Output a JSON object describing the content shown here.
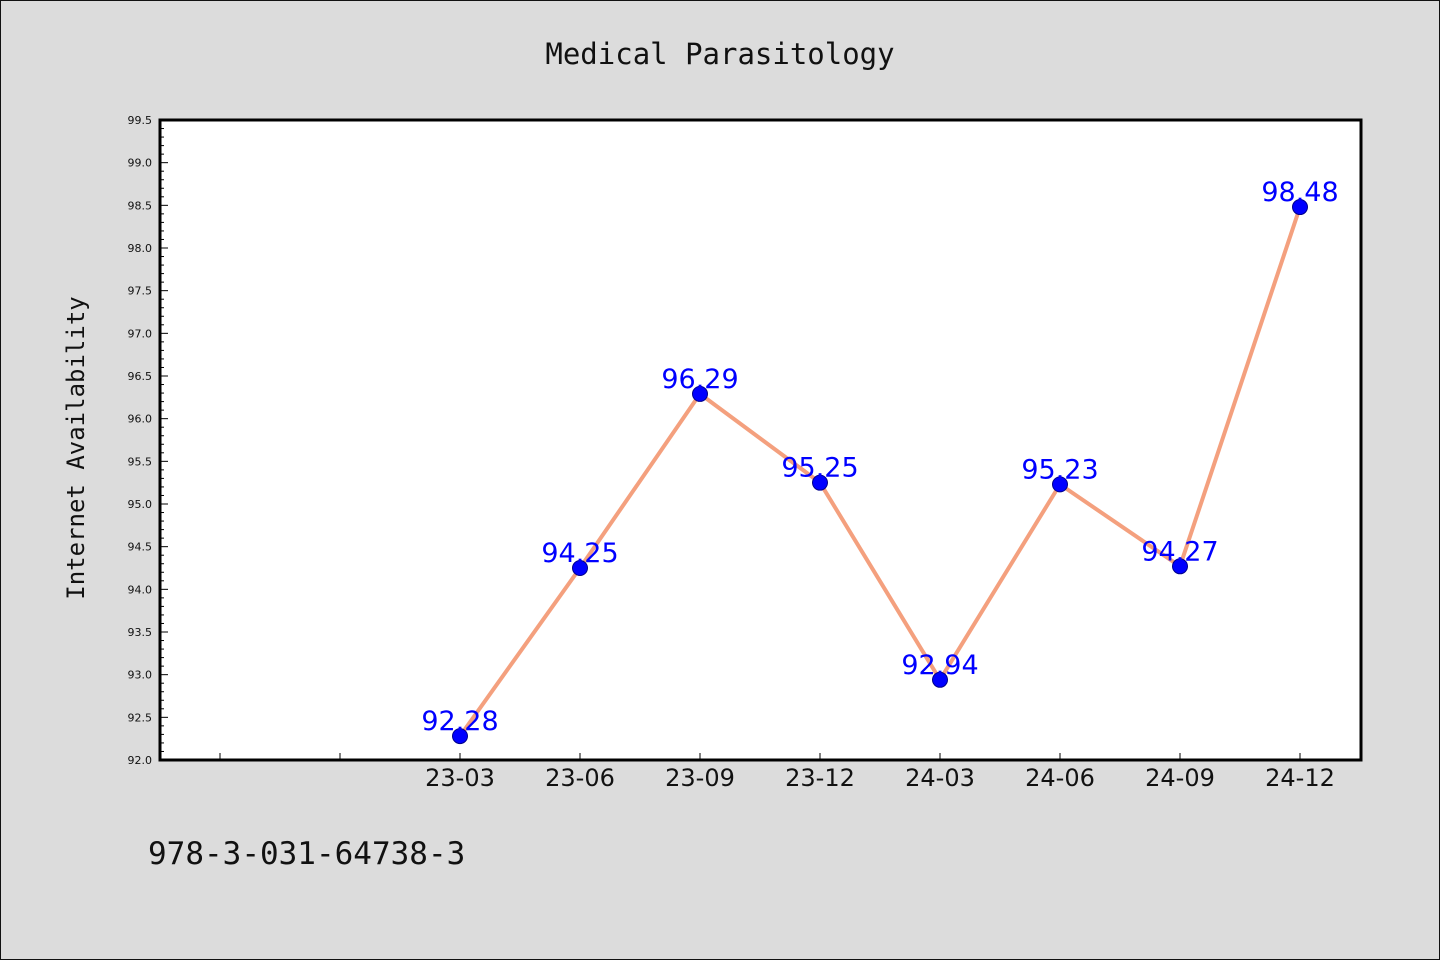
{
  "chart_data": {
    "type": "line",
    "title": "Medical Parasitology",
    "ylabel": "Internet Availability",
    "xlabel": "",
    "categories": [
      "",
      "",
      "23-03",
      "23-06",
      "23-09",
      "23-12",
      "24-03",
      "24-06",
      "24-09",
      "24-12"
    ],
    "series": [
      {
        "values": [
          null,
          null,
          92.28,
          94.25,
          96.29,
          95.25,
          92.94,
          95.23,
          94.27,
          98.48
        ]
      }
    ],
    "data_labels": [
      "",
      "",
      "92.28",
      "94.25",
      "96.29",
      "95.25",
      "92.94",
      "95.23",
      "94.27",
      "98.48"
    ],
    "ylim": [
      92.0,
      99.5
    ],
    "yticks": [
      "92.0",
      "92.5",
      "93.0",
      "93.5",
      "94.0",
      "94.5",
      "95.0",
      "95.5",
      "96.0",
      "96.5",
      "97.0",
      "97.5",
      "98.0",
      "98.5",
      "99.0",
      "99.5"
    ],
    "grid": false,
    "line_color": "#f4a07e",
    "marker_color": "#0000ff",
    "label_color": "#0000ff"
  },
  "footer": {
    "isbn": "978-3-031-64738-3"
  }
}
